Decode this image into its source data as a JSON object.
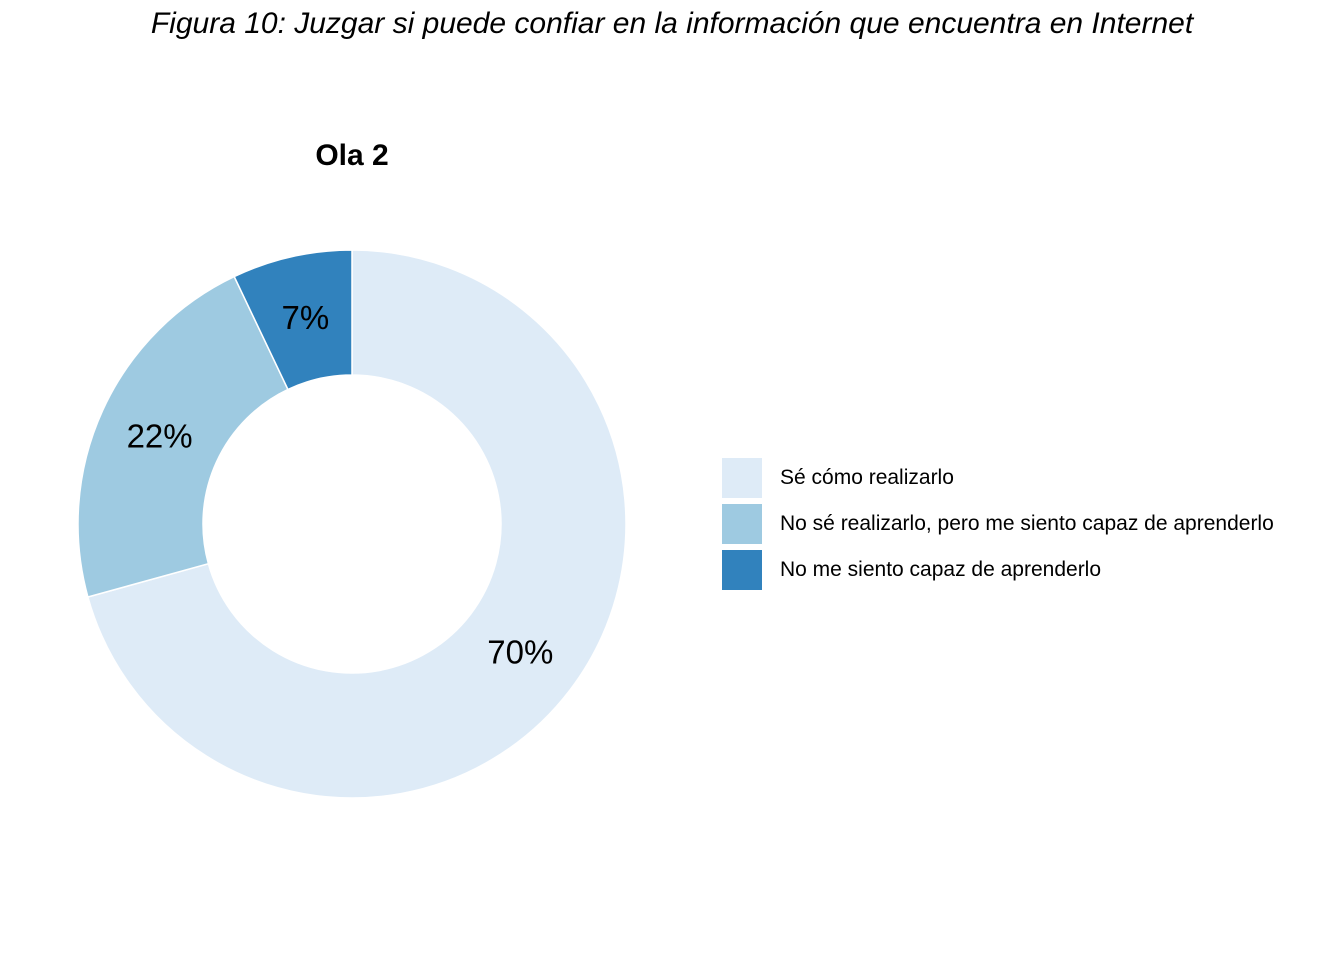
{
  "figure_title": "Figura 10: Juzgar si puede confiar en la información que encuentra en Internet",
  "chart_data": {
    "type": "pie",
    "variant": "donut",
    "title": "Ola 2",
    "legend_position": "right",
    "slices": [
      {
        "label": "Sé cómo realizarlo",
        "value": 70,
        "display": "70%",
        "color": "#deebf7"
      },
      {
        "label": "No sé realizarlo, pero me siento capaz de aprenderlo",
        "value": 22,
        "display": "22%",
        "color": "#9ecae1"
      },
      {
        "label": "No me siento capaz de aprenderlo",
        "value": 7,
        "display": "7%",
        "color": "#3182bd"
      }
    ]
  }
}
